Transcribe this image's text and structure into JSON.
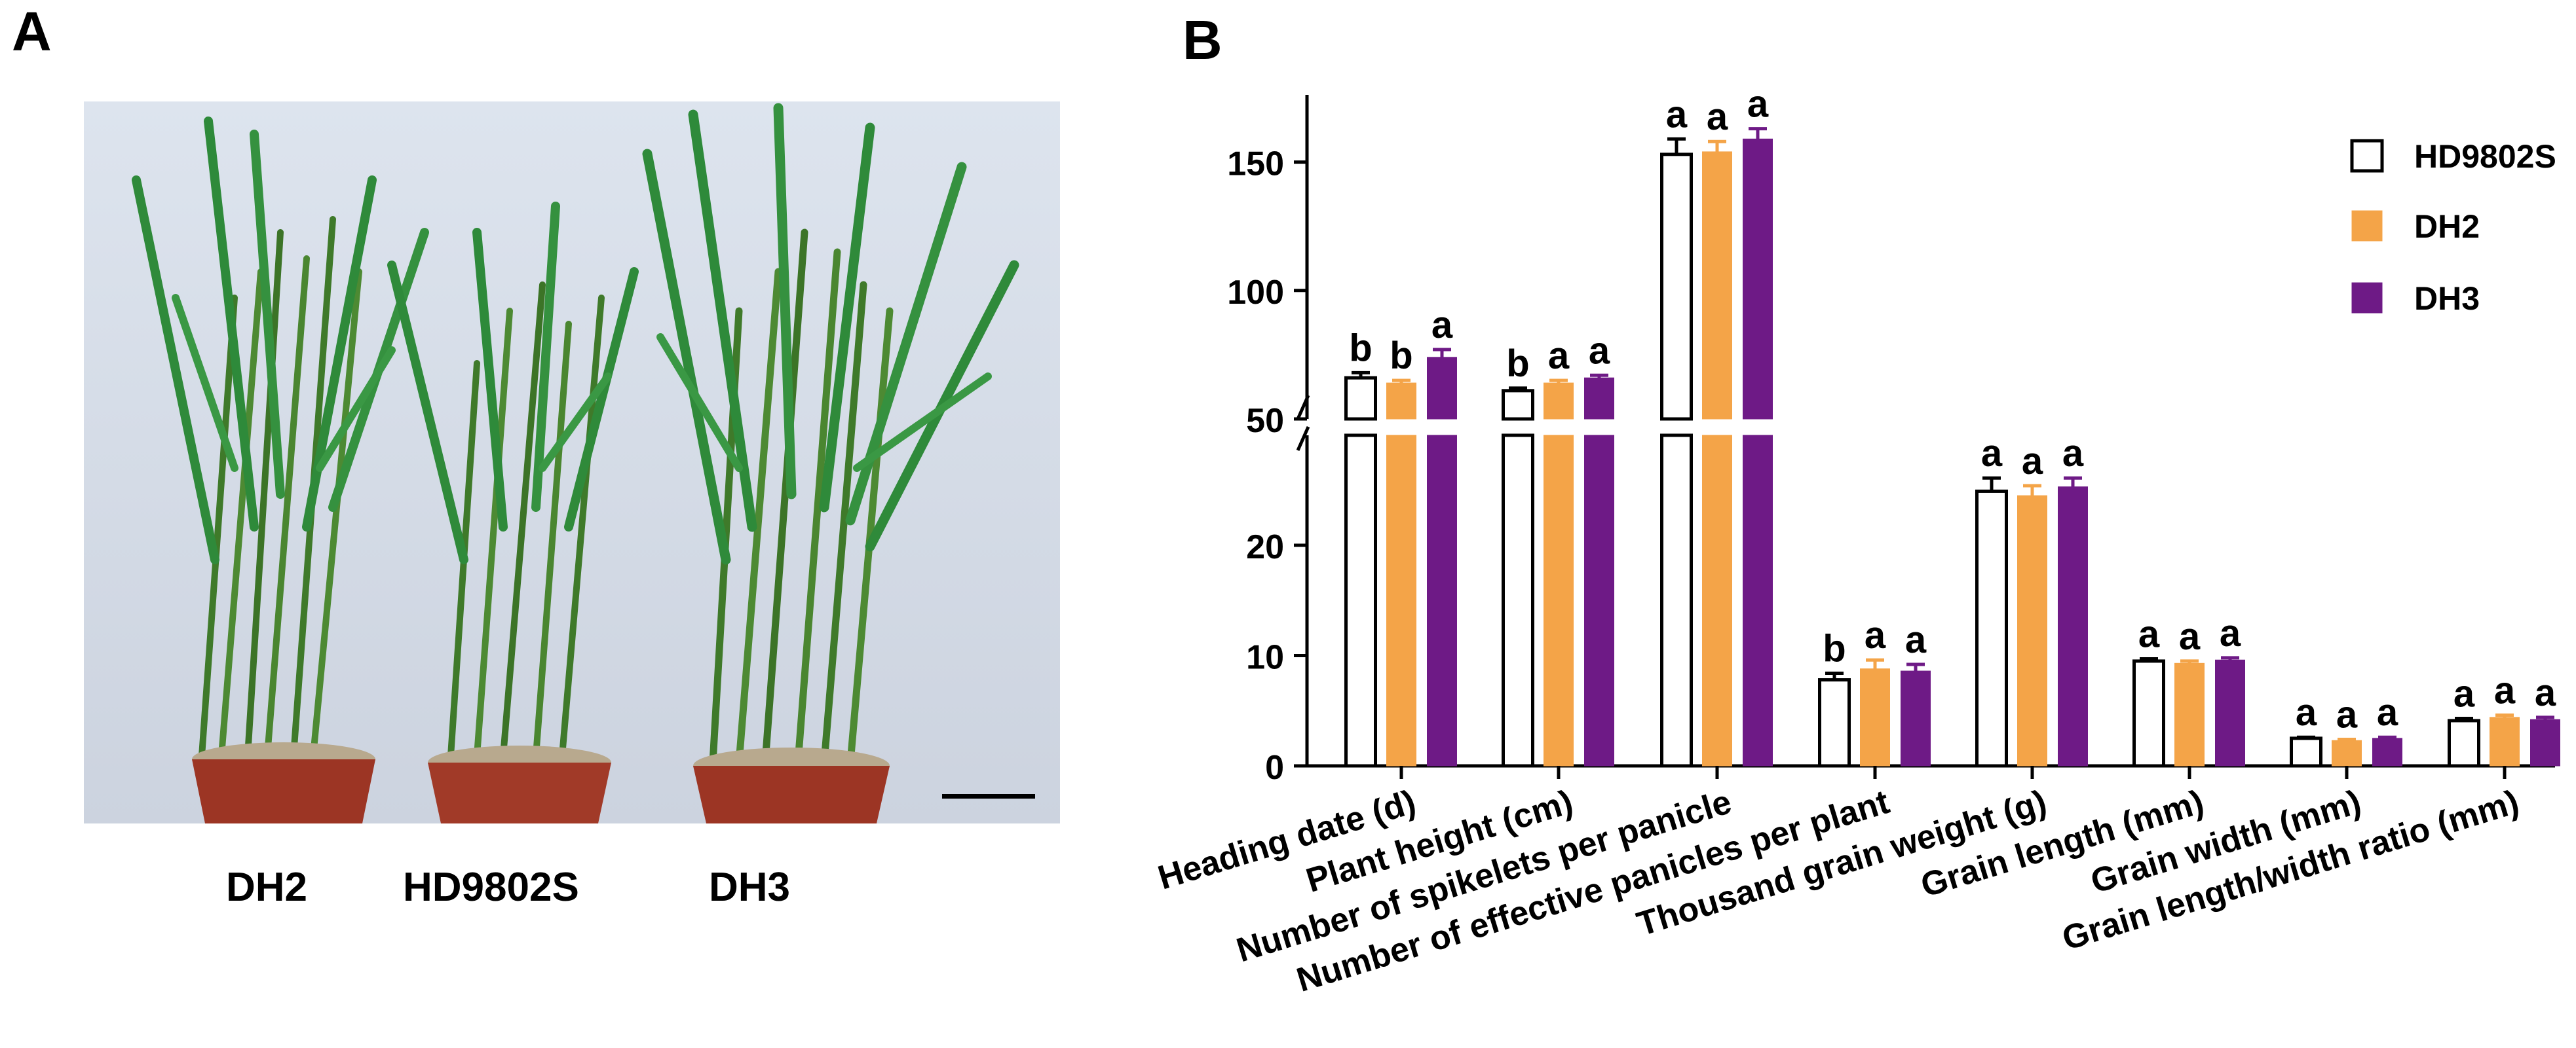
{
  "panel_a": {
    "letter": "A",
    "labels": [
      "DH2",
      "HD9802S",
      "DH3"
    ]
  },
  "chart_data": {
    "panel_letter": "B",
    "type": "bar",
    "categories": [
      "Heading date (d)",
      "Plant height (cm)",
      "Number of spikelets per panicle",
      "Number of effective panicles per plant",
      "Thousand grain weight (g)",
      "Grain length (mm)",
      "Grain width (mm)",
      "Grain length/width ratio (mm)"
    ],
    "series": [
      {
        "name": "HD9802S",
        "fill": "#ffffff",
        "stroke": "#000000",
        "values": [
          66,
          61,
          153,
          7.8,
          24.9,
          9.5,
          2.5,
          4.1
        ],
        "errors": [
          2,
          1,
          6,
          0.6,
          1.2,
          0.2,
          0.1,
          0.2
        ],
        "letters": [
          "b",
          "b",
          "a",
          "b",
          "a",
          "a",
          "a",
          "a"
        ]
      },
      {
        "name": "DH2",
        "fill": "#f4a448",
        "stroke": "#f4a448",
        "values": [
          64,
          64,
          154,
          8.8,
          24.5,
          9.3,
          2.3,
          4.4
        ],
        "errors": [
          1,
          1,
          4,
          0.8,
          0.9,
          0.2,
          0.1,
          0.2
        ],
        "letters": [
          "b",
          "a",
          "a",
          "a",
          "a",
          "a",
          "a",
          "a"
        ]
      },
      {
        "name": "DH3",
        "fill": "#6e1a86",
        "stroke": "#6e1a86",
        "values": [
          74,
          66,
          159,
          8.6,
          25.3,
          9.6,
          2.5,
          4.2
        ],
        "errors": [
          3,
          1,
          4,
          0.6,
          0.8,
          0.2,
          0.1,
          0.2
        ],
        "letters": [
          "a",
          "a",
          "a",
          "a",
          "a",
          "a",
          "a",
          "a"
        ]
      }
    ],
    "y_axis": {
      "lower_range": [
        0,
        30
      ],
      "lower_ticks": [
        0,
        10,
        20
      ],
      "upper_range": [
        50,
        170
      ],
      "upper_ticks": [
        50,
        100,
        150
      ],
      "break": "30-50"
    },
    "xlabel": "",
    "ylabel": "",
    "legend_position": "top-right",
    "grid": false
  }
}
